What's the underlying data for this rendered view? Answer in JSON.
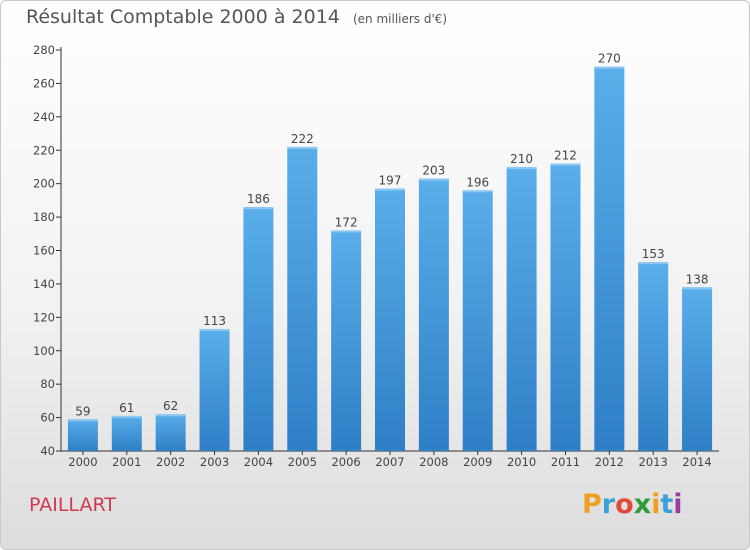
{
  "title": "Résultat Comptable 2000 à 2014",
  "subtitle": "(en milliers d'€)",
  "commune": "PAILLART",
  "logo": {
    "text": "Proxiti",
    "letters": [
      {
        "ch": "P",
        "color": "#f0a020"
      },
      {
        "ch": "r",
        "color": "#3aa0d8"
      },
      {
        "ch": "o",
        "color": "#e04a3a"
      },
      {
        "ch": "x",
        "color": "#2f9a3a"
      },
      {
        "ch": "i",
        "color": "#f0a020"
      },
      {
        "ch": "t",
        "color": "#3aa0d8"
      },
      {
        "ch": "i",
        "color": "#9a3aa0"
      }
    ]
  },
  "colors": {
    "bar_top": "#5aaeea",
    "bar_bottom": "#2e7fc6",
    "axis": "#333333",
    "grid": "#d0d0d0"
  },
  "chart_data": {
    "type": "bar",
    "categories": [
      "2000",
      "2001",
      "2002",
      "2003",
      "2004",
      "2005",
      "2006",
      "2007",
      "2008",
      "2009",
      "2010",
      "2011",
      "2012",
      "2013",
      "2014"
    ],
    "values": [
      59,
      61,
      62,
      113,
      186,
      222,
      172,
      197,
      203,
      196,
      210,
      212,
      270,
      153,
      138
    ],
    "value_labels": [
      "59",
      "61",
      "62",
      "113",
      "186",
      "222",
      "172",
      "197",
      "203",
      "196",
      "210",
      "212",
      "270",
      "153",
      "138"
    ],
    "title": "Résultat Comptable 2000 à 2014",
    "xlabel": "",
    "ylabel": "",
    "ylim": [
      40,
      280
    ],
    "yticks": [
      40,
      60,
      80,
      100,
      120,
      140,
      160,
      180,
      200,
      220,
      240,
      260,
      280
    ],
    "ytick_labels": [
      "40",
      "60",
      "80",
      "100",
      "120",
      "140",
      "160",
      "180",
      "200",
      "220",
      "240",
      "260",
      "280"
    ],
    "grid": false,
    "legend": "none"
  }
}
